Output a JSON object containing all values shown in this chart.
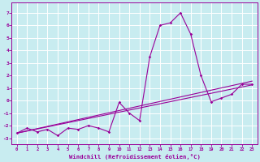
{
  "xlabel": "Windchill (Refroidissement éolien,°C)",
  "bg_color": "#c8ecf0",
  "line_color": "#990099",
  "grid_color": "#ffffff",
  "xlim": [
    -0.5,
    23.5
  ],
  "ylim": [
    -3.5,
    7.8
  ],
  "yticks": [
    -3,
    -2,
    -1,
    0,
    1,
    2,
    3,
    4,
    5,
    6,
    7
  ],
  "xticks": [
    0,
    1,
    2,
    3,
    4,
    5,
    6,
    7,
    8,
    9,
    10,
    11,
    12,
    13,
    14,
    15,
    16,
    17,
    18,
    19,
    20,
    21,
    22,
    23
  ],
  "series1_x": [
    0,
    1,
    2,
    3,
    4,
    5,
    6,
    7,
    8,
    9,
    10,
    11,
    12,
    13,
    14,
    15,
    16,
    17,
    18,
    19,
    20,
    21,
    22,
    23
  ],
  "series1_y": [
    -2.6,
    -2.2,
    -2.5,
    -2.3,
    -2.8,
    -2.2,
    -2.3,
    -2.0,
    -2.2,
    -2.5,
    -0.15,
    -1.0,
    -1.6,
    3.5,
    6.0,
    6.2,
    7.0,
    5.3,
    2.0,
    -0.1,
    0.2,
    0.5,
    1.3,
    1.3
  ],
  "line2_x": [
    0,
    23
  ],
  "line2_y": [
    -2.6,
    1.55
  ],
  "line3_x": [
    0,
    23
  ],
  "line3_y": [
    -2.6,
    1.25
  ]
}
